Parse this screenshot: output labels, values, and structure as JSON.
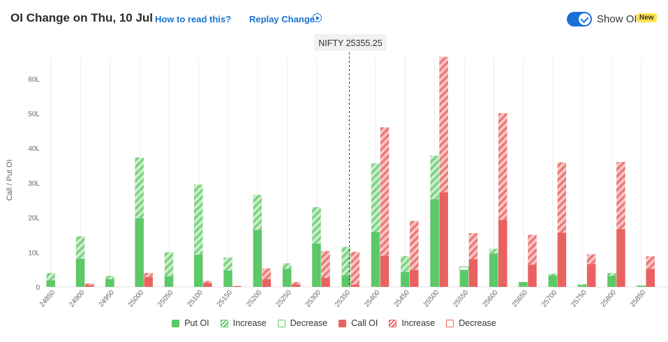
{
  "header": {
    "title": "OI Change on Thu, 10 Jul",
    "how_to_read": "How to read this?",
    "replay": "Replay Change",
    "show_oi_label": "Show OI",
    "new_badge": "New",
    "show_oi_on": true
  },
  "spot": {
    "label": "NIFTY 25355.25",
    "value": 25355.25
  },
  "legend": {
    "put_oi": "Put OI",
    "put_increase": "Increase",
    "put_decrease": "Decrease",
    "call_oi": "Call OI",
    "call_increase": "Increase",
    "call_decrease": "Decrease"
  },
  "colors": {
    "put": "#5cc868",
    "put_light": "#a6e1a8",
    "call": "#e9625f",
    "call_light": "#f3a3a1",
    "accent": "#1a6fd9",
    "badge": "#ffe14d"
  },
  "chart_data": {
    "type": "bar",
    "ylabel": "Call / Put OI",
    "ylim": [
      0,
      66
    ],
    "yticks": [
      "0",
      "10L",
      "20L",
      "30L",
      "40L",
      "50L",
      "60L"
    ],
    "ytick_values": [
      0,
      10,
      20,
      30,
      40,
      50,
      60
    ],
    "unit": "L",
    "categories": [
      "24850",
      "24900",
      "24950",
      "25000",
      "25050",
      "25100",
      "25150",
      "25200",
      "25250",
      "25300",
      "25350",
      "25400",
      "25450",
      "25500",
      "25550",
      "25600",
      "25650",
      "25700",
      "25750",
      "25800",
      "25850"
    ],
    "series": [
      {
        "name": "Put OI",
        "values": [
          1.9,
          8.1,
          2.2,
          19.8,
          3.1,
          9.3,
          4.7,
          16.4,
          5.2,
          12.5,
          3.3,
          15.8,
          4.3,
          25.3,
          4.8,
          9.6,
          1.4,
          3.3,
          0.5,
          3.2,
          0.3
        ]
      },
      {
        "name": "Put Increase",
        "values": [
          2.1,
          6.5,
          1.0,
          17.5,
          6.9,
          20.2,
          3.8,
          10.1,
          1.6,
          10.5,
          8.2,
          19.8,
          4.6,
          12.5,
          0,
          1.4,
          0,
          0.5,
          0.3,
          0.8,
          0.1
        ]
      },
      {
        "name": "Put Decrease",
        "values": [
          0,
          0,
          0,
          0,
          0,
          0,
          0,
          0,
          0,
          0,
          0,
          0,
          0,
          0,
          1.0,
          0,
          0,
          0,
          0,
          0,
          0
        ]
      },
      {
        "name": "Call OI",
        "values": [
          0,
          0.5,
          0,
          2.8,
          0,
          1.1,
          0.2,
          2.2,
          0.7,
          2.6,
          0.6,
          9.0,
          4.9,
          27.3,
          8.0,
          19.3,
          6.4,
          15.6,
          6.6,
          16.6,
          5.2
        ]
      },
      {
        "name": "Call Increase",
        "values": [
          0,
          0.5,
          0,
          1.2,
          0,
          0.6,
          0.1,
          3.1,
          0.7,
          7.7,
          9.5,
          37.0,
          14.1,
          39.0,
          7.5,
          30.8,
          8.6,
          20.3,
          2.8,
          19.4,
          3.6
        ]
      },
      {
        "name": "Call Decrease",
        "values": [
          0,
          0,
          0,
          0,
          0,
          0,
          0,
          0,
          0,
          0,
          0,
          0,
          0,
          0,
          0,
          0,
          0,
          0,
          0,
          0,
          0
        ]
      }
    ],
    "grid": "vertical",
    "legend_position": "bottom"
  }
}
